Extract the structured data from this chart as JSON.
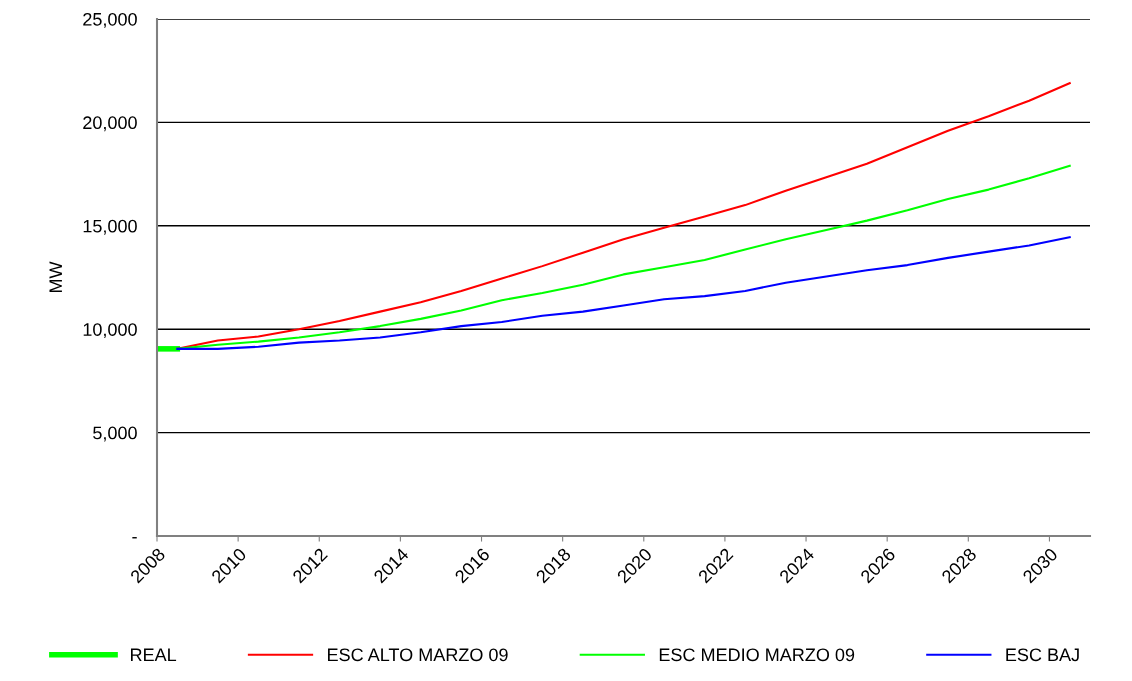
{
  "chart_data": {
    "type": "line",
    "ylabel": "MW",
    "x": [
      2008.5,
      2009.5,
      2010.5,
      2011.5,
      2012.5,
      2013.5,
      2014.5,
      2015.5,
      2016.5,
      2017.5,
      2018.5,
      2019.5,
      2020.5,
      2021.5,
      2022.5,
      2023.5,
      2024.5,
      2025.5,
      2026.5,
      2027.5,
      2028.5,
      2029.5,
      2030.5
    ],
    "series": [
      {
        "name": "REAL",
        "color": "#00ff00",
        "x": [
          2008,
          2008.5
        ],
        "values": [
          9050,
          9050
        ]
      },
      {
        "name": "ESC ALTO MARZO 09",
        "color": "#ff0000",
        "values": [
          9050,
          9450,
          9650,
          10000,
          10400,
          10850,
          11300,
          11850,
          12450,
          13050,
          13700,
          14350,
          14900,
          15450,
          16000,
          16700,
          17350,
          18000,
          18800,
          19600,
          20300,
          21050,
          21900
        ]
      },
      {
        "name": "ESC MEDIO MARZO 09",
        "color": "#00ff00",
        "values": [
          9050,
          9250,
          9400,
          9600,
          9850,
          10150,
          10500,
          10900,
          11400,
          11750,
          12150,
          12650,
          13000,
          13350,
          13850,
          14350,
          14800,
          15250,
          15750,
          16300,
          16750,
          17300,
          17900
        ]
      },
      {
        "name": "ESC BAJ",
        "color": "#0000ff",
        "values": [
          9050,
          9050,
          9150,
          9350,
          9450,
          9600,
          9850,
          10150,
          10350,
          10650,
          10850,
          11150,
          11450,
          11600,
          11850,
          12250,
          12550,
          12850,
          13100,
          13450,
          13750,
          14050,
          14450
        ]
      }
    ],
    "xlim": [
      2008,
      2031
    ],
    "xticks": [
      2008,
      2010,
      2012,
      2014,
      2016,
      2018,
      2020,
      2022,
      2024,
      2026,
      2028,
      2030
    ],
    "ylim": [
      0,
      25000
    ],
    "yticks": [
      {
        "value": 0,
        "label": "-"
      },
      {
        "value": 5000,
        "label": "5,000"
      },
      {
        "value": 10000,
        "label": "10,000"
      },
      {
        "value": 15000,
        "label": "15,000"
      },
      {
        "value": 20000,
        "label": "20,000"
      },
      {
        "value": 25000,
        "label": "25,000"
      }
    ],
    "grid": "y",
    "legend": "bottom",
    "marker": "none",
    "line_style": "solid"
  }
}
